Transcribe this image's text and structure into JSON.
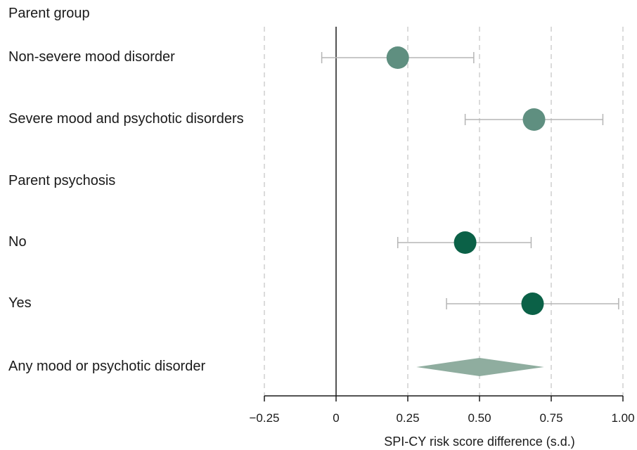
{
  "chart_data": {
    "type": "forest",
    "xlabel": "SPI-CY risk score difference (s.d.)",
    "xlim": [
      -0.25,
      1.0
    ],
    "xticks": [
      -0.25,
      0,
      0.25,
      0.5,
      0.75,
      1.0
    ],
    "xtick_labels": [
      "−0.25",
      "0",
      "0.25",
      "0.50",
      "0.75",
      "1.00"
    ],
    "grid": "vertical-dashed",
    "rows": [
      {
        "label": "Parent group",
        "kind": "header"
      },
      {
        "label": "Non-severe mood disorder",
        "kind": "estimate",
        "estimate": 0.215,
        "ci": [
          -0.05,
          0.48
        ],
        "color": "#5f8f80"
      },
      {
        "label": "Severe mood and psychotic disorders",
        "kind": "estimate",
        "estimate": 0.69,
        "ci": [
          0.45,
          0.93
        ],
        "color": "#5f8f80"
      },
      {
        "label": "Parent psychosis",
        "kind": "header"
      },
      {
        "label": "No",
        "kind": "estimate",
        "estimate": 0.45,
        "ci": [
          0.215,
          0.68
        ],
        "color": "#0b6147"
      },
      {
        "label": "Yes",
        "kind": "estimate",
        "estimate": 0.685,
        "ci": [
          0.385,
          0.985
        ],
        "color": "#0b6147"
      },
      {
        "label": "Any mood or psychotic disorder",
        "kind": "pooled",
        "estimate": 0.5,
        "ci": [
          0.28,
          0.725
        ],
        "color": "#8fad9f"
      }
    ]
  }
}
